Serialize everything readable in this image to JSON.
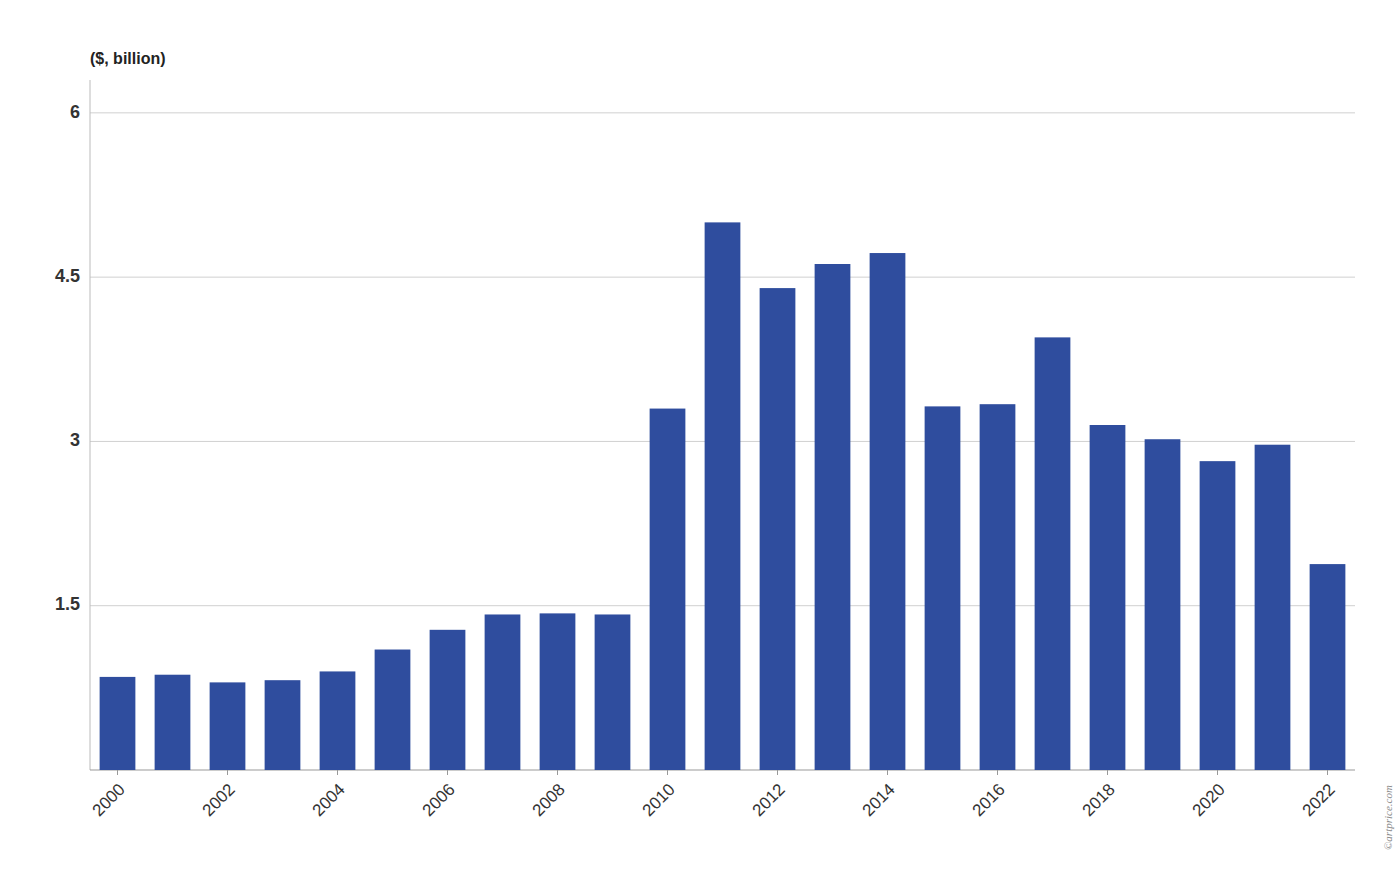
{
  "chart_data": {
    "type": "bar",
    "y_label": "($, billion)",
    "annotations": [
      "©artprice.com"
    ],
    "categories": [
      "2000",
      null,
      "2002",
      null,
      "2004",
      null,
      "2006",
      null,
      "2008",
      null,
      "2010",
      null,
      "2012",
      null,
      "2014",
      null,
      "2016",
      null,
      "2018",
      null,
      "2020",
      null,
      "2022"
    ],
    "values": [
      0.85,
      0.87,
      0.8,
      0.82,
      0.9,
      1.1,
      1.28,
      1.42,
      1.43,
      1.42,
      3.3,
      5.0,
      4.4,
      4.62,
      4.72,
      3.32,
      3.34,
      3.95,
      3.15,
      3.02,
      2.82,
      2.97,
      1.88
    ],
    "color": "#2f4d9e",
    "ylim": [
      0,
      6.3
    ],
    "yticks": [
      1.5,
      3,
      4.5,
      6
    ],
    "grid": true
  }
}
